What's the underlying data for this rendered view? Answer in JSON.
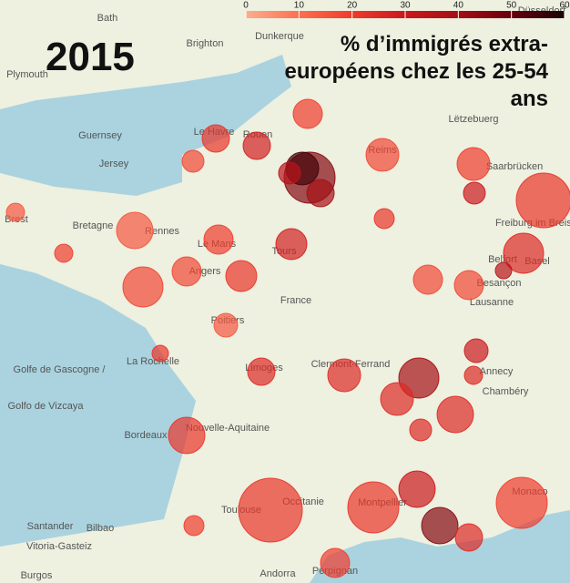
{
  "title": "2015",
  "legend": {
    "title": "% d’immigrés extra-européens chez les 25-54 ans",
    "ticks": [
      0,
      10,
      20,
      30,
      40,
      50,
      60
    ],
    "colors": [
      "#fcae91",
      "#fb7050",
      "#ef3b2c",
      "#cb181d",
      "#a50f15",
      "#67000d",
      "#1a0505"
    ]
  },
  "places": [
    "Bath",
    "Brighton",
    "Plymouth",
    "Dunkerque",
    "Düsseldorf",
    "Guernsey",
    "Jersey",
    "Le Havre",
    "Rouen",
    "Reims",
    "Saarbrücken",
    "Brest",
    "Bretagne",
    "Rennes",
    "Le Mans",
    "Tours",
    "Freiburg im Breisgau",
    "Angers",
    "Belfort",
    "Basel",
    "Besançon",
    "France",
    "Poitiers",
    "Lausanne",
    "La Rochelle",
    "Limoges",
    "Clermont-Ferrand",
    "Annecy",
    "Chambéry",
    "Bordeaux",
    "Nouvelle-Aquitaine",
    "Toulouse",
    "Occitanie",
    "Montpellier",
    "Monaco",
    "Santander",
    "Bilbao",
    "Vitoria-Gasteiz",
    "Burgos",
    "Andorra",
    "Perpignan",
    "Golfe de Gascogne /",
    "Golfo de Vizcaya",
    "Lëtzebuerg"
  ],
  "bubbles": [
    {
      "value": 45
    },
    {
      "value": 55
    },
    {
      "value": 40
    },
    {
      "value": 35
    },
    {
      "value": 28
    },
    {
      "value": 22
    },
    {
      "value": 18
    },
    {
      "value": 20
    },
    {
      "value": 18
    },
    {
      "value": 22
    },
    {
      "value": 20
    },
    {
      "value": 22
    },
    {
      "value": 30
    },
    {
      "value": 25
    },
    {
      "value": 35
    },
    {
      "value": 18
    },
    {
      "value": 18
    },
    {
      "value": 28
    },
    {
      "value": 22
    },
    {
      "value": 20
    },
    {
      "value": 15
    },
    {
      "value": 15
    },
    {
      "value": 20
    },
    {
      "value": 18
    },
    {
      "value": 18
    },
    {
      "value": 15
    },
    {
      "value": 22
    },
    {
      "value": 25
    },
    {
      "value": 40
    },
    {
      "value": 25
    },
    {
      "value": 25
    },
    {
      "value": 30
    },
    {
      "value": 25
    },
    {
      "value": 25
    },
    {
      "value": 25
    },
    {
      "value": 22
    },
    {
      "value": 22
    },
    {
      "value": 30
    },
    {
      "value": 45
    },
    {
      "value": 25
    },
    {
      "value": 22
    },
    {
      "value": 20
    },
    {
      "value": 20
    },
    {
      "value": 20
    }
  ]
}
